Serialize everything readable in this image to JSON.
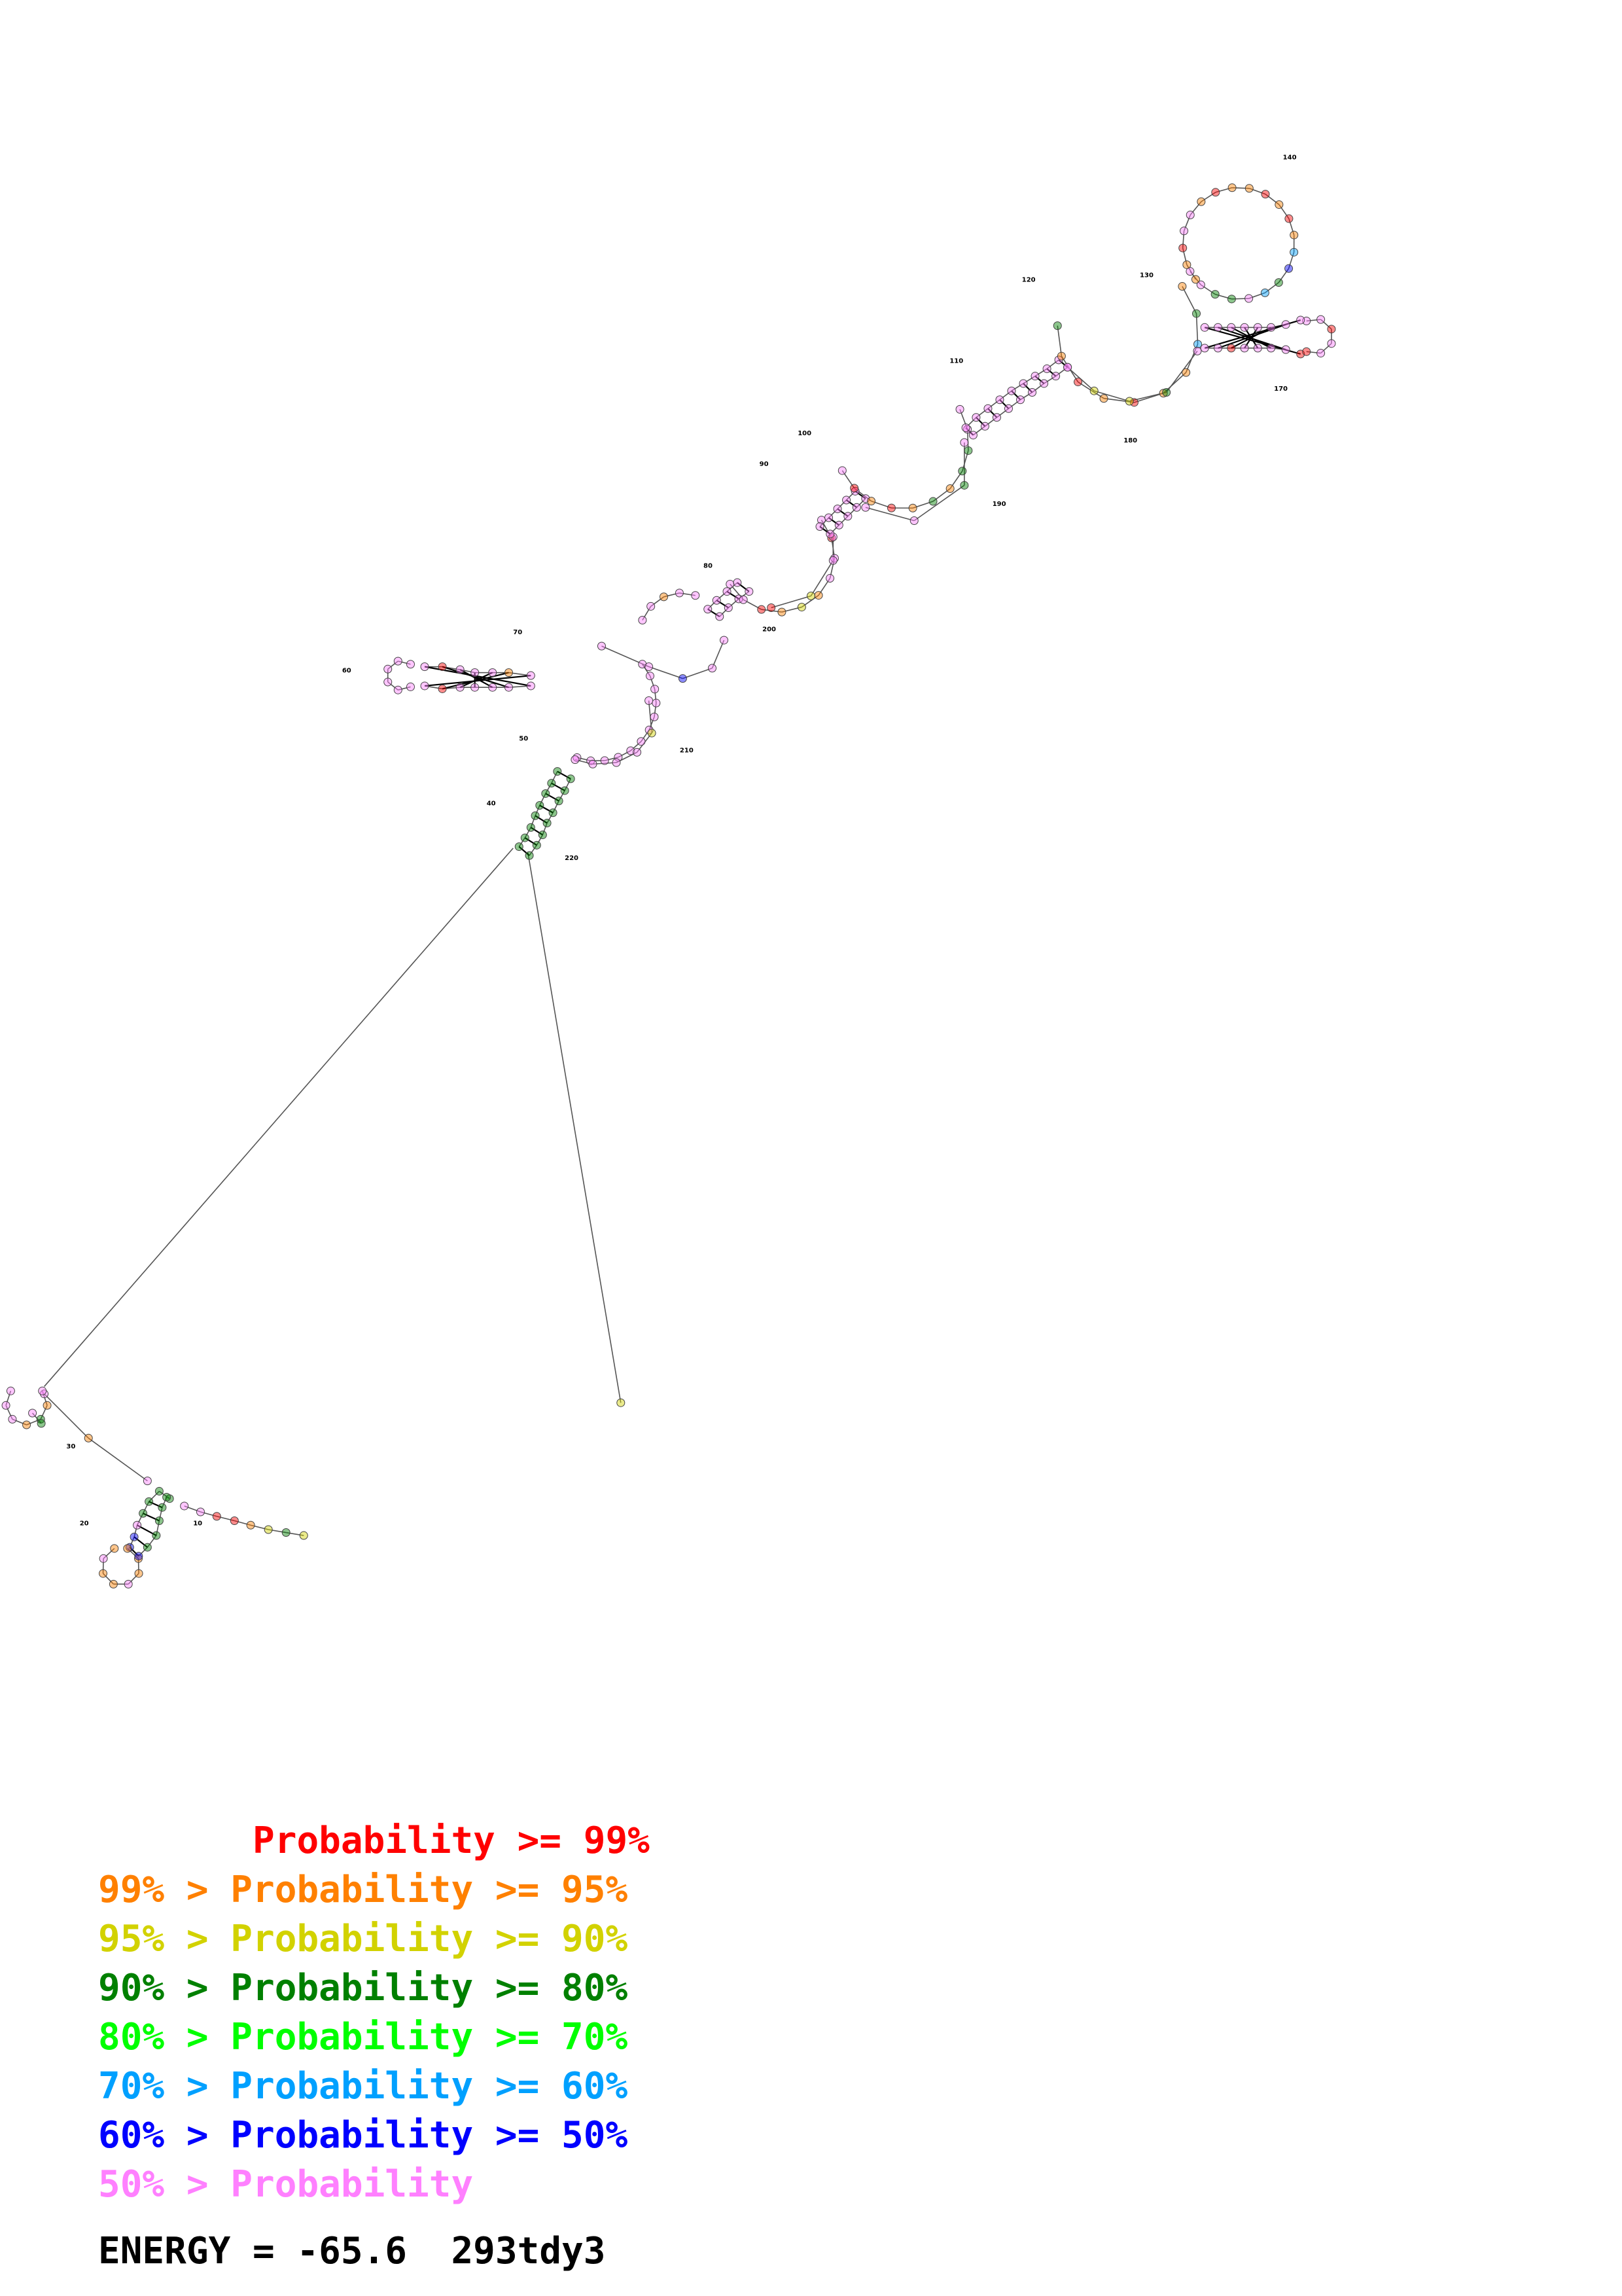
{
  "legend": [
    {
      "prefix": "       ",
      "text": "Probability >= 99%",
      "color": "#ff0000"
    },
    {
      "prefix": "99% > ",
      "text": "Probability >= 95%",
      "color": "#ff8000"
    },
    {
      "prefix": "95% > ",
      "text": "Probability >= 90%",
      "color": "#d2d200"
    },
    {
      "prefix": "90% > ",
      "text": "Probability >= 80%",
      "color": "#008000"
    },
    {
      "prefix": "80% > ",
      "text": "Probability >= 70%",
      "color": "#00ff00"
    },
    {
      "prefix": "70% > ",
      "text": "Probability >= 60%",
      "color": "#00a0ff"
    },
    {
      "prefix": "60% > ",
      "text": "Probability >= 50%",
      "color": "#0000ff"
    },
    {
      "prefix": "50% > ",
      "text": "Probability",
      "color": "#ff80ff"
    }
  ],
  "energy_label": "ENERGY = ",
  "energy_value": "-65.6",
  "structure_id": "293tdy3",
  "position_labels": [
    "10",
    "20",
    "30",
    "40",
    "50",
    "60",
    "70",
    "80",
    "90",
    "100",
    "110",
    "120",
    "130",
    "140",
    "170",
    "180",
    "190",
    "200",
    "210",
    "220"
  ],
  "nucleotide_classes": {
    "red": "#ff0000",
    "orange": "#ff8000",
    "yellow": "#d2d200",
    "darkgreen": "#008000",
    "green": "#00ff00",
    "cyan": "#00a0ff",
    "blue": "#0000ff",
    "pink": "#ff80ff"
  }
}
